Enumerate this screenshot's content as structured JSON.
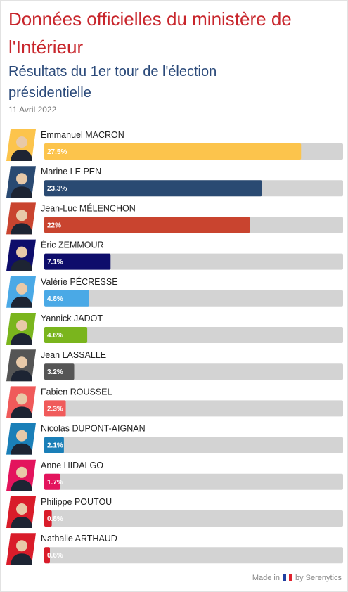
{
  "chart_data": {
    "type": "bar",
    "orientation": "horizontal",
    "title": "Données officielles du ministère de l'Intérieur",
    "subtitle": "Résultats du 1er tour de l'élection présidentielle",
    "date": "11 Avril 2022",
    "categories": [
      "Emmanuel MACRON",
      "Marine LE PEN",
      "Jean-Luc MÉLENCHON",
      "Éric ZEMMOUR",
      "Valérie PÉCRESSE",
      "Yannick JADOT",
      "Jean LASSALLE",
      "Fabien ROUSSEL",
      "Nicolas DUPONT-AIGNAN",
      "Anne HIDALGO",
      "Philippe POUTOU",
      "Nathalie ARTHAUD"
    ],
    "values": [
      27.5,
      23.3,
      22,
      7.1,
      4.8,
      4.6,
      3.2,
      2.3,
      2.1,
      1.7,
      0.8,
      0.6
    ],
    "value_labels": [
      "27.5%",
      "23.3%",
      "22%",
      "7.1%",
      "4.8%",
      "4.6%",
      "3.2%",
      "2.3%",
      "2.1%",
      "1.7%",
      "0.8%",
      "0.6%"
    ],
    "colors": [
      "#fcc44c",
      "#2a4a72",
      "#c9442f",
      "#0e0d6b",
      "#4aa9e6",
      "#7ab51d",
      "#555555",
      "#f05a5a",
      "#1a7fb8",
      "#e3145d",
      "#d91c2a",
      "#d91c2a"
    ],
    "xlim": [
      0,
      32
    ]
  },
  "footer": {
    "made_in": "Made in",
    "by": "by Serenytics"
  }
}
